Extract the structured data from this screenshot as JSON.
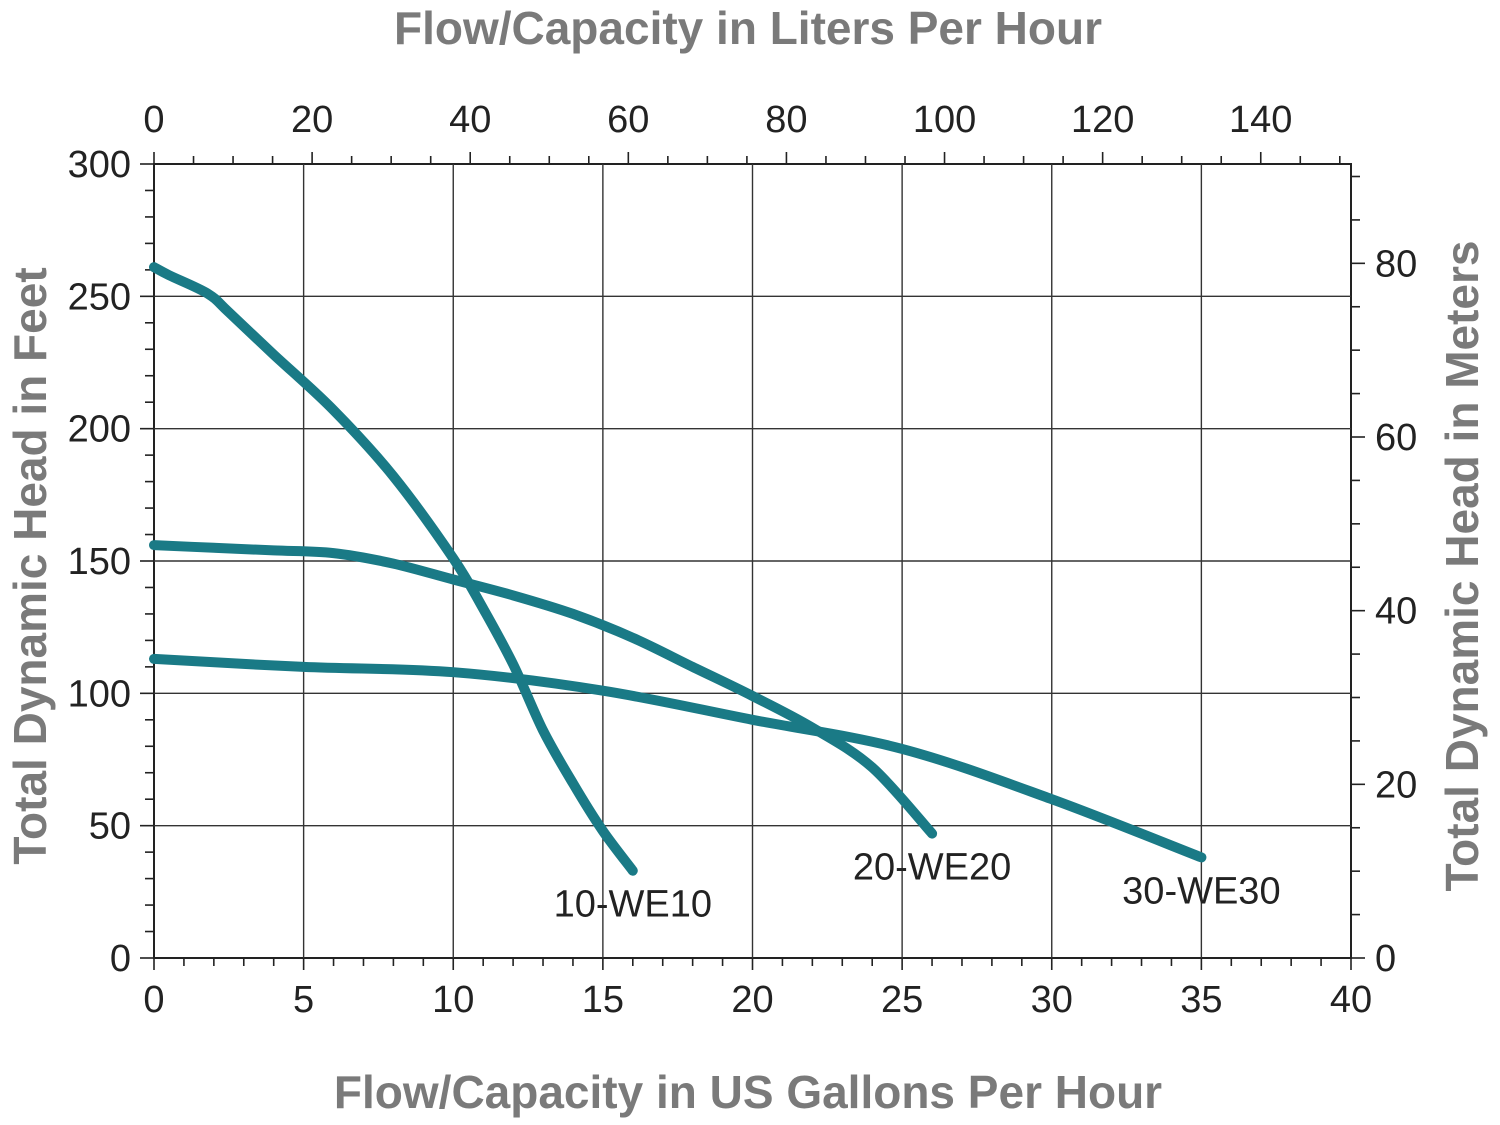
{
  "chart_data": {
    "type": "line",
    "xlabel_top": "Flow/Capacity in Liters Per Hour",
    "xlabel_bottom": "Flow/Capacity in US Gallons Per Hour",
    "ylabel_left": "Total Dynamic Head in Feet",
    "ylabel_right": "Total Dynamic Head in Meters",
    "x_ticks_bottom": [
      "0",
      "5",
      "10",
      "15",
      "20",
      "25",
      "30",
      "35",
      "40"
    ],
    "x_ticks_top": [
      "0",
      "20",
      "40",
      "60",
      "80",
      "100",
      "120",
      "140"
    ],
    "y_ticks_left": [
      "0",
      "50",
      "100",
      "150",
      "200",
      "250",
      "300"
    ],
    "y_ticks_right": [
      "0",
      "20",
      "40",
      "60",
      "80"
    ],
    "xlim": [
      0,
      40
    ],
    "ylim": [
      0,
      300
    ],
    "grid": true,
    "line_color": "#1a7a86",
    "series": [
      {
        "name": "10-WE10",
        "x": [
          0,
          0.5,
          1.8,
          2.5,
          4,
          6,
          8,
          10,
          11,
          12,
          13,
          14,
          15,
          16
        ],
        "y": [
          261,
          258,
          251,
          244,
          228,
          207,
          182,
          151,
          132,
          111,
          86,
          66,
          48,
          33
        ]
      },
      {
        "name": "20-WE20",
        "x": [
          0,
          2,
          4,
          6,
          8,
          10,
          12,
          14,
          16,
          18,
          20,
          22,
          24,
          26
        ],
        "y": [
          156,
          155,
          154,
          153,
          149,
          143,
          137,
          130,
          121,
          110,
          99,
          87,
          72,
          47
        ]
      },
      {
        "name": "30-WE30",
        "x": [
          0,
          5,
          10,
          15,
          20,
          25,
          30,
          35
        ],
        "y": [
          113,
          110,
          108,
          101,
          90,
          79,
          60,
          38
        ]
      }
    ]
  }
}
